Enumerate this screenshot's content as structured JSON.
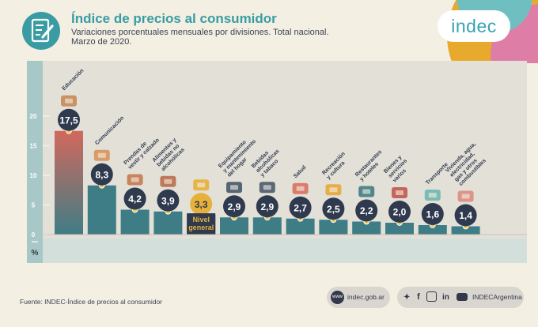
{
  "header": {
    "title": "Índice de precios al consumidor",
    "subtitle_line1": "Variaciones porcentuales mensuales por divisiones. Total nacional.",
    "subtitle_line2": "Marzo de 2020.",
    "icon": "document-pencil-icon"
  },
  "brand": {
    "logo_text": "indec"
  },
  "chart_data": {
    "type": "bar",
    "unit_label": "%",
    "ylim": [
      0,
      25
    ],
    "yticks": [
      0,
      5,
      10,
      15,
      20
    ],
    "categories": [
      "Educación",
      "Comunicación",
      "Prendas de vestir y calzado",
      "Alimentos y bebidas no alcohólicas",
      "Nivel general",
      "Equipamiento y mantenimiento del hogar",
      "Bebidas alcohólicas y tabaco",
      "Salud",
      "Recreación y cultura",
      "Restaurantes y hoteles",
      "Bienes y servicios varios",
      "Transporte",
      "Vivienda, agua, electricidad, gas y otros combustibles"
    ],
    "label_lines": [
      [
        "Educación"
      ],
      [
        "Comunicación"
      ],
      [
        "Prendas de",
        "vestir y calzado"
      ],
      [
        "Alimentos y",
        "bebidas no",
        "alcohólicas"
      ],
      [],
      [
        "Equipamiento",
        "y mantenimiento",
        "del hogar"
      ],
      [
        "Bebidas",
        "alcohólicas",
        "y tabaco"
      ],
      [
        "Salud"
      ],
      [
        "Recreación",
        "y cultura"
      ],
      [
        "Restaurantes",
        "y hoteles"
      ],
      [
        "Bienes y",
        "servicios",
        "varios"
      ],
      [
        "Transporte"
      ],
      [
        "Vivienda, agua,",
        "electricidad,",
        "gas y otros",
        "combustibles"
      ]
    ],
    "highlight_label": [
      "Nivel",
      "general"
    ],
    "values_text": [
      "17,5",
      "8,3",
      "4,2",
      "3,9",
      "3,3",
      "2,9",
      "2,9",
      "2,7",
      "2,5",
      "2,2",
      "2,0",
      "1,6",
      "1,4"
    ],
    "values": [
      17.5,
      8.3,
      4.2,
      3.9,
      3.3,
      2.9,
      2.9,
      2.7,
      2.5,
      2.2,
      2.0,
      1.6,
      1.4
    ],
    "highlight_index": 4,
    "colors": {
      "bar": "#3f7d86",
      "bar_gradient_top": "#d2685c",
      "highlight_bar": "#2f3a4e",
      "highlight_label": "#e6b03a",
      "value_bubble": "#2f3a4e",
      "marker": "#f0c451",
      "axis_panel": "#a7c8c6",
      "plot_panel": "#e3e0d8"
    }
  },
  "footer": {
    "source": "Fuente: INDEC-Índice de precios al consumidor",
    "web_icon": "globe-icon",
    "web_text": "indec.gob.ar",
    "web_icon_text": "www",
    "social_icons": [
      "twitter-icon",
      "facebook-icon",
      "instagram-icon",
      "linkedin-icon",
      "youtube-icon"
    ],
    "social_text": "INDECArgentina"
  }
}
